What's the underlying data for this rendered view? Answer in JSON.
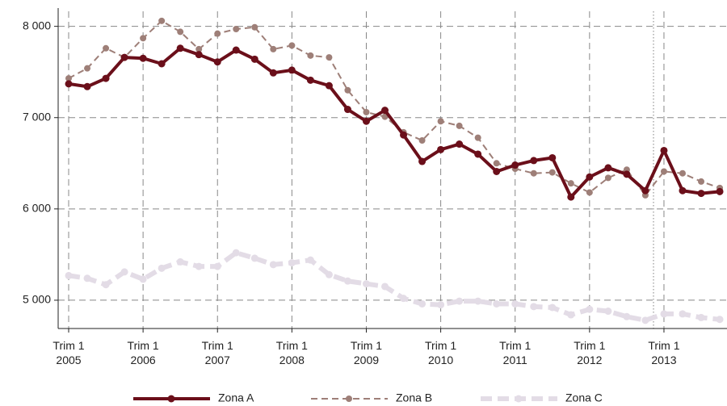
{
  "chart_data": {
    "type": "line",
    "categories": [
      "Trim 1\n2005",
      null,
      null,
      null,
      "Trim 1\n2006",
      null,
      null,
      null,
      "Trim 1\n2007",
      null,
      null,
      null,
      "Trim 1\n2008",
      null,
      null,
      null,
      "Trim 1\n2009",
      null,
      null,
      null,
      "Trim 1\n2010",
      null,
      null,
      null,
      "Trim 1\n2011",
      null,
      null,
      null,
      "Trim 1\n2012",
      null,
      null,
      null,
      "Trim 1\n2013",
      null,
      null,
      null
    ],
    "series": [
      {
        "name": "Zona A",
        "color": "#6b0f1a",
        "values": [
          7370,
          7340,
          7430,
          7660,
          7650,
          7590,
          7760,
          7690,
          7610,
          7740,
          7640,
          7490,
          7520,
          7410,
          7350,
          7090,
          6960,
          7080,
          6810,
          6520,
          6650,
          6710,
          6600,
          6410,
          6480,
          6530,
          6560,
          6130,
          6350,
          6450,
          6380,
          6200,
          6640,
          6200,
          6170,
          6190
        ]
      },
      {
        "name": "Zona B",
        "color": "#9e7f78",
        "values": [
          7430,
          7540,
          7760,
          7660,
          7870,
          8060,
          7940,
          7750,
          7920,
          7970,
          7990,
          7750,
          7790,
          7680,
          7660,
          7300,
          7060,
          7010,
          6840,
          6750,
          6960,
          6910,
          6780,
          6500,
          6440,
          6390,
          6400,
          6280,
          6180,
          6340,
          6430,
          6150,
          6410,
          6390,
          6300,
          6230
        ]
      },
      {
        "name": "Zona C",
        "color": "#e3dce6",
        "values": [
          5270,
          5240,
          5170,
          5310,
          5230,
          5350,
          5420,
          5370,
          5370,
          5520,
          5460,
          5390,
          5410,
          5440,
          5280,
          5210,
          5180,
          5150,
          5020,
          4960,
          4950,
          4990,
          4990,
          4960,
          4960,
          4930,
          4920,
          4840,
          4900,
          4880,
          4820,
          4780,
          4850,
          4850,
          4810,
          4790
        ]
      }
    ],
    "ylim": [
      4690,
      8200
    ],
    "yticks": [
      {
        "value": 5000,
        "label": "5 000"
      },
      {
        "value": 6000,
        "label": "6 000"
      },
      {
        "value": 7000,
        "label": "7 000"
      },
      {
        "value": 8000,
        "label": "8 000"
      }
    ],
    "grid": true,
    "legend": "bottom"
  }
}
